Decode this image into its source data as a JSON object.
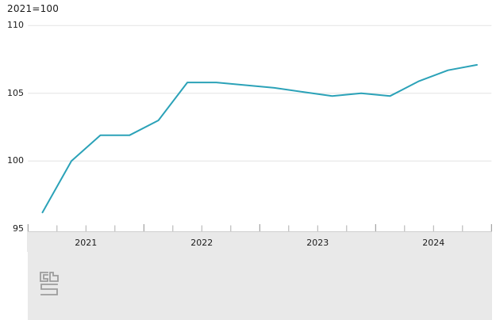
{
  "header": {
    "index_label": "2021=100"
  },
  "logo": {
    "name": "cbs-logo",
    "color": "#9c9c9c"
  },
  "colors": {
    "line": "#2ba2b8",
    "grid": "#e4e4e4",
    "band": "#e9e9e9",
    "band_border": "#cfcfcf",
    "quarter_tick": "#adadad",
    "year_tick": "#8f8f8f",
    "text": "#1a1a1a"
  },
  "chart_data": {
    "type": "line",
    "title": "2021=100",
    "xlabel": "",
    "ylabel": "",
    "categories": [
      "2021 Q1",
      "2021 Q2",
      "2021 Q3",
      "2021 Q4",
      "2022 Q1",
      "2022 Q2",
      "2022 Q3",
      "2022 Q4",
      "2023 Q1",
      "2023 Q2",
      "2023 Q3",
      "2023 Q4",
      "2024 Q1",
      "2024 Q2",
      "2024 Q3",
      "2024 Q4"
    ],
    "values": [
      96.2,
      100.0,
      101.9,
      101.9,
      103.0,
      105.8,
      105.8,
      105.6,
      105.4,
      105.1,
      104.8,
      105.0,
      104.8,
      105.9,
      106.7,
      107.1
    ],
    "year_labels": [
      "2021",
      "2022",
      "2023",
      "2024"
    ],
    "yticks": [
      110,
      105,
      100,
      95
    ],
    "ylim": [
      95,
      110
    ],
    "grid": "horizontal-only",
    "legend": "none",
    "line_color": "#2ba2b8"
  }
}
